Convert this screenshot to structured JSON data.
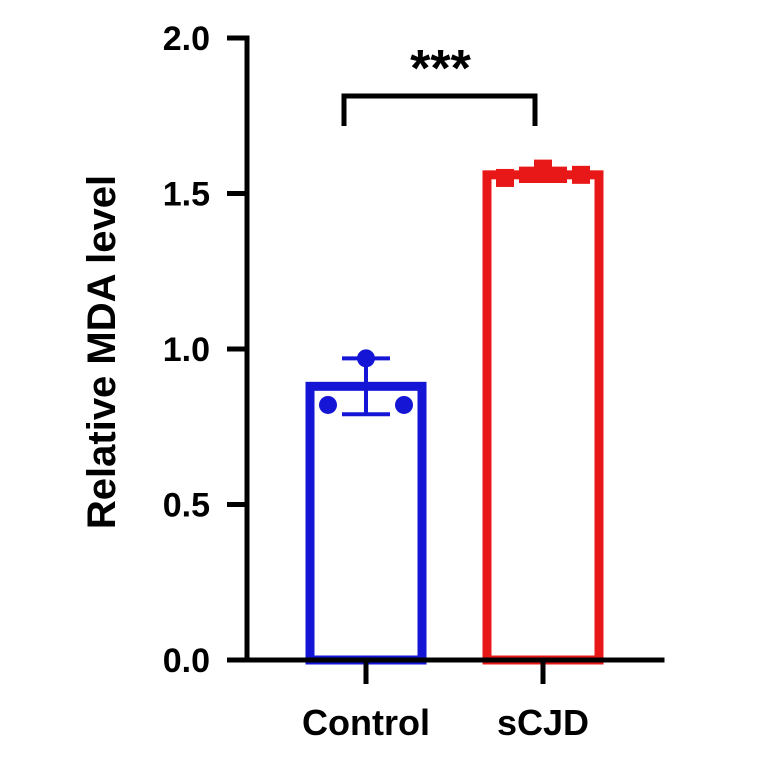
{
  "chart_data": {
    "type": "bar",
    "ylabel": "Relative MDA level",
    "xlabel": "",
    "ylim": [
      0,
      2.0
    ],
    "yticks": [
      "0.0",
      "0.5",
      "1.0",
      "1.5",
      "2.0"
    ],
    "categories": [
      "Control",
      "sCJD"
    ],
    "values": [
      0.88,
      1.56
    ],
    "error": [
      0.09,
      0.02
    ],
    "points": [
      [
        0.97,
        0.82,
        0.82
      ],
      [
        1.58,
        1.55,
        1.56
      ]
    ],
    "colors": [
      "#1515d6",
      "#e81818"
    ],
    "markers": [
      "circle",
      "square"
    ],
    "significance": "***"
  }
}
